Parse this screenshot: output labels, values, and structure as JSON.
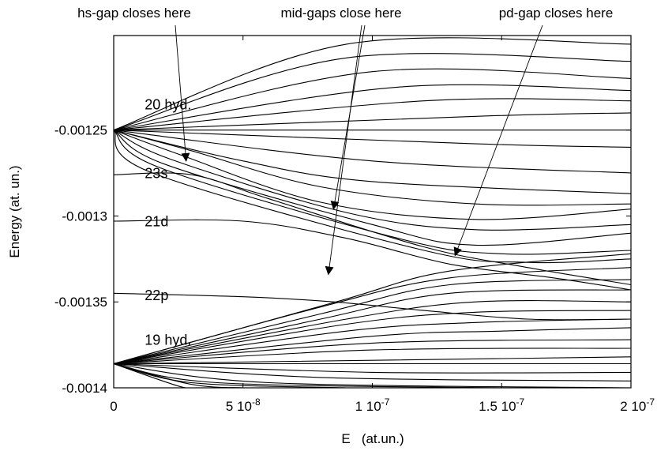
{
  "chart_data": {
    "type": "line",
    "title": "",
    "xlabel": "E   (at.un.)",
    "ylabel": "Energy (at. un.)",
    "xlim": [
      0,
      2e-07
    ],
    "ylim": [
      -0.0014,
      -0.001195
    ],
    "grid": false,
    "x_ticks": [
      {
        "value": 0,
        "label": "0"
      },
      {
        "value": 5e-08,
        "label": "5 10^-8"
      },
      {
        "value": 1e-07,
        "label": "1 10^-7"
      },
      {
        "value": 1.5e-07,
        "label": "1.5 10^-7"
      },
      {
        "value": 2e-07,
        "label": "2 10^-7"
      }
    ],
    "y_ticks": [
      {
        "value": -0.00125,
        "label": "-0.00125"
      },
      {
        "value": -0.0013,
        "label": "-0.0013"
      },
      {
        "value": -0.00135,
        "label": "-0.00135"
      },
      {
        "value": -0.0014,
        "label": "-0.0014"
      }
    ],
    "level_labels": [
      {
        "text": "20 hyd.",
        "x": 1.2e-08,
        "y": -0.001238
      },
      {
        "text": "23s",
        "x": 1.2e-08,
        "y": -0.001278
      },
      {
        "text": "21d",
        "x": 1.2e-08,
        "y": -0.001306
      },
      {
        "text": "22p",
        "x": 1.2e-08,
        "y": -0.001349
      },
      {
        "text": "19 hyd.",
        "x": 1.2e-08,
        "y": -0.001375
      }
    ],
    "fan_sources": [
      {
        "name": "n=20 manifold",
        "x": 0,
        "y": -0.00125
      },
      {
        "name": "n=19 manifold",
        "x": 0,
        "y": -0.001386
      }
    ],
    "series": [
      {
        "x": [
          0,
          9e-08,
          2e-07
        ],
        "y": [
          -0.00125,
          -0.0012,
          -0.0012
        ]
      },
      {
        "x": [
          0,
          9e-08,
          2e-07
        ],
        "y": [
          -0.00125,
          -0.001208,
          -0.00121
        ]
      },
      {
        "x": [
          0,
          1e-07,
          2e-07
        ],
        "y": [
          -0.00125,
          -0.001216,
          -0.00122
        ]
      },
      {
        "x": [
          0,
          1.1e-07,
          2e-07
        ],
        "y": [
          -0.00125,
          -0.001225,
          -0.001227
        ]
      },
      {
        "x": [
          0,
          1.2e-07,
          2e-07
        ],
        "y": [
          -0.00125,
          -0.001233,
          -0.001233
        ]
      },
      {
        "x": [
          0,
          1.4e-07,
          2e-07
        ],
        "y": [
          -0.00125,
          -0.001242,
          -0.00124
        ]
      },
      {
        "x": [
          0,
          2e-07
        ],
        "y": [
          -0.00125,
          -0.00125
        ]
      },
      {
        "x": [
          0,
          1.4e-07,
          2e-07
        ],
        "y": [
          -0.00125,
          -0.001258,
          -0.00126
        ]
      },
      {
        "x": [
          0,
          1e-07,
          2e-07
        ],
        "y": [
          -0.00125,
          -0.001268,
          -0.001275
        ]
      },
      {
        "x": [
          0,
          5e-08,
          1e-07,
          2e-07
        ],
        "y": [
          -0.00125,
          -0.001268,
          -0.00128,
          -0.001287
        ]
      },
      {
        "x": [
          0,
          3e-08,
          8e-08,
          1.4e-07,
          2e-07
        ],
        "y": [
          -0.00125,
          -0.001262,
          -0.001283,
          -0.001293,
          -0.001293
        ]
      },
      {
        "x": [
          0,
          2.5e-08,
          8e-08,
          1.4e-07,
          2e-07
        ],
        "y": [
          -0.00125,
          -0.001264,
          -0.001292,
          -0.001302,
          -0.001296
        ]
      },
      {
        "x": [
          0,
          2.2e-08,
          9e-08,
          1.4e-07,
          2e-07
        ],
        "y": [
          -0.00125,
          -0.001267,
          -0.001298,
          -0.001308,
          -0.001305
        ]
      },
      {
        "x": [
          0,
          2e-08,
          1e-07,
          1.4e-07,
          2e-07
        ],
        "y": [
          -0.00125,
          -0.00127,
          -0.001305,
          -0.001317,
          -0.00131
        ]
      },
      {
        "x": [
          0,
          1.8e-08,
          1.1e-07,
          1.5e-07,
          2e-07
        ],
        "y": [
          -0.00125,
          -0.001272,
          -0.001313,
          -0.001322,
          -0.00132
        ]
      },
      {
        "x": [
          0,
          1.5e-08,
          1.2e-07,
          1.6e-07,
          2e-07
        ],
        "y": [
          -0.00125,
          -0.001275,
          -0.00132,
          -0.001327,
          -0.001325
        ]
      },
      {
        "x": [
          0,
          3e-08,
          6e-08,
          1.2e-07,
          1.6e-07,
          2e-07
        ],
        "y": [
          -0.001276,
          -0.001276,
          -0.00129,
          -0.001318,
          -0.00133,
          -0.00134
        ]
      },
      {
        "x": [
          0,
          5e-08,
          9e-08,
          1.3e-07,
          1.7e-07,
          2e-07
        ],
        "y": [
          -0.001303,
          -0.001303,
          -0.001313,
          -0.001328,
          -0.001336,
          -0.001343
        ]
      },
      {
        "x": [
          0,
          5e-08,
          8.5e-08,
          1.2e-07,
          1.6e-07,
          2e-07
        ],
        "y": [
          -0.001345,
          -0.001347,
          -0.00135,
          -0.001355,
          -0.00136,
          -0.00136
        ]
      },
      {
        "x": [
          0,
          8.6e-08,
          1.3e-07,
          2e-07
        ],
        "y": [
          -0.001386,
          -0.00135,
          -0.001332,
          -0.001322
        ]
      },
      {
        "x": [
          0,
          8e-08,
          1.3e-07,
          2e-07
        ],
        "y": [
          -0.001386,
          -0.001353,
          -0.001336,
          -0.00133
        ]
      },
      {
        "x": [
          0,
          8e-08,
          1.3e-07,
          2e-07
        ],
        "y": [
          -0.001386,
          -0.001357,
          -0.00134,
          -0.001337
        ]
      },
      {
        "x": [
          0,
          8e-08,
          1.3e-07,
          2e-07
        ],
        "y": [
          -0.001386,
          -0.00136,
          -0.001345,
          -0.001343
        ]
      },
      {
        "x": [
          0,
          9e-08,
          1.4e-07,
          2e-07
        ],
        "y": [
          -0.001386,
          -0.00136,
          -0.00135,
          -0.00135
        ]
      },
      {
        "x": [
          0,
          9e-08,
          1.4e-07,
          2e-07
        ],
        "y": [
          -0.001386,
          -0.001363,
          -0.001356,
          -0.001355
        ]
      },
      {
        "x": [
          0,
          9e-08,
          1.4e-07,
          2e-07
        ],
        "y": [
          -0.001386,
          -0.001367,
          -0.001362,
          -0.00136
        ]
      },
      {
        "x": [
          0,
          1e-07,
          1.5e-07,
          2e-07
        ],
        "y": [
          -0.001386,
          -0.00137,
          -0.001367,
          -0.001365
        ]
      },
      {
        "x": [
          0,
          1e-07,
          2e-07
        ],
        "y": [
          -0.001386,
          -0.001374,
          -0.001372
        ]
      },
      {
        "x": [
          0,
          1e-07,
          2e-07
        ],
        "y": [
          -0.001386,
          -0.001378,
          -0.001377
        ]
      },
      {
        "x": [
          0,
          2e-07
        ],
        "y": [
          -0.001386,
          -0.001382
        ]
      },
      {
        "x": [
          0,
          2e-07
        ],
        "y": [
          -0.001386,
          -0.001386
        ]
      },
      {
        "x": [
          0,
          1e-07,
          2e-07
        ],
        "y": [
          -0.001386,
          -0.001391,
          -0.001391
        ]
      },
      {
        "x": [
          0,
          8e-08,
          2e-07
        ],
        "y": [
          -0.001386,
          -0.001394,
          -0.001396
        ]
      },
      {
        "x": [
          0,
          6e-08,
          2e-07
        ],
        "y": [
          -0.001386,
          -0.001397,
          -0.0014
        ]
      },
      {
        "x": [
          0,
          4e-08,
          1.5e-07
        ],
        "y": [
          -0.001386,
          -0.001397,
          -0.0014
        ]
      },
      {
        "x": [
          0,
          3e-08,
          9e-08
        ],
        "y": [
          -0.001386,
          -0.001397,
          -0.0014
        ]
      },
      {
        "x": [
          0,
          3e-08,
          5e-08
        ],
        "y": [
          -0.001386,
          -0.001398,
          -0.0014
        ]
      },
      {
        "x": [
          0,
          2.5e-08,
          3.2e-08
        ],
        "y": [
          -0.001386,
          -0.001399,
          -0.0014
        ]
      }
    ],
    "annotations": [
      {
        "text": "hs-gap closes here",
        "target": {
          "x": 2.8e-08,
          "y": -0.001268
        }
      },
      {
        "text": "mid-gaps close here",
        "targets": [
          {
            "x": 8.5e-08,
            "y": -0.001296
          },
          {
            "x": 8.3e-08,
            "y": -0.001334
          }
        ]
      },
      {
        "text": "pd-gap closes here",
        "target": {
          "x": 1.32e-07,
          "y": -0.001323
        }
      }
    ]
  }
}
